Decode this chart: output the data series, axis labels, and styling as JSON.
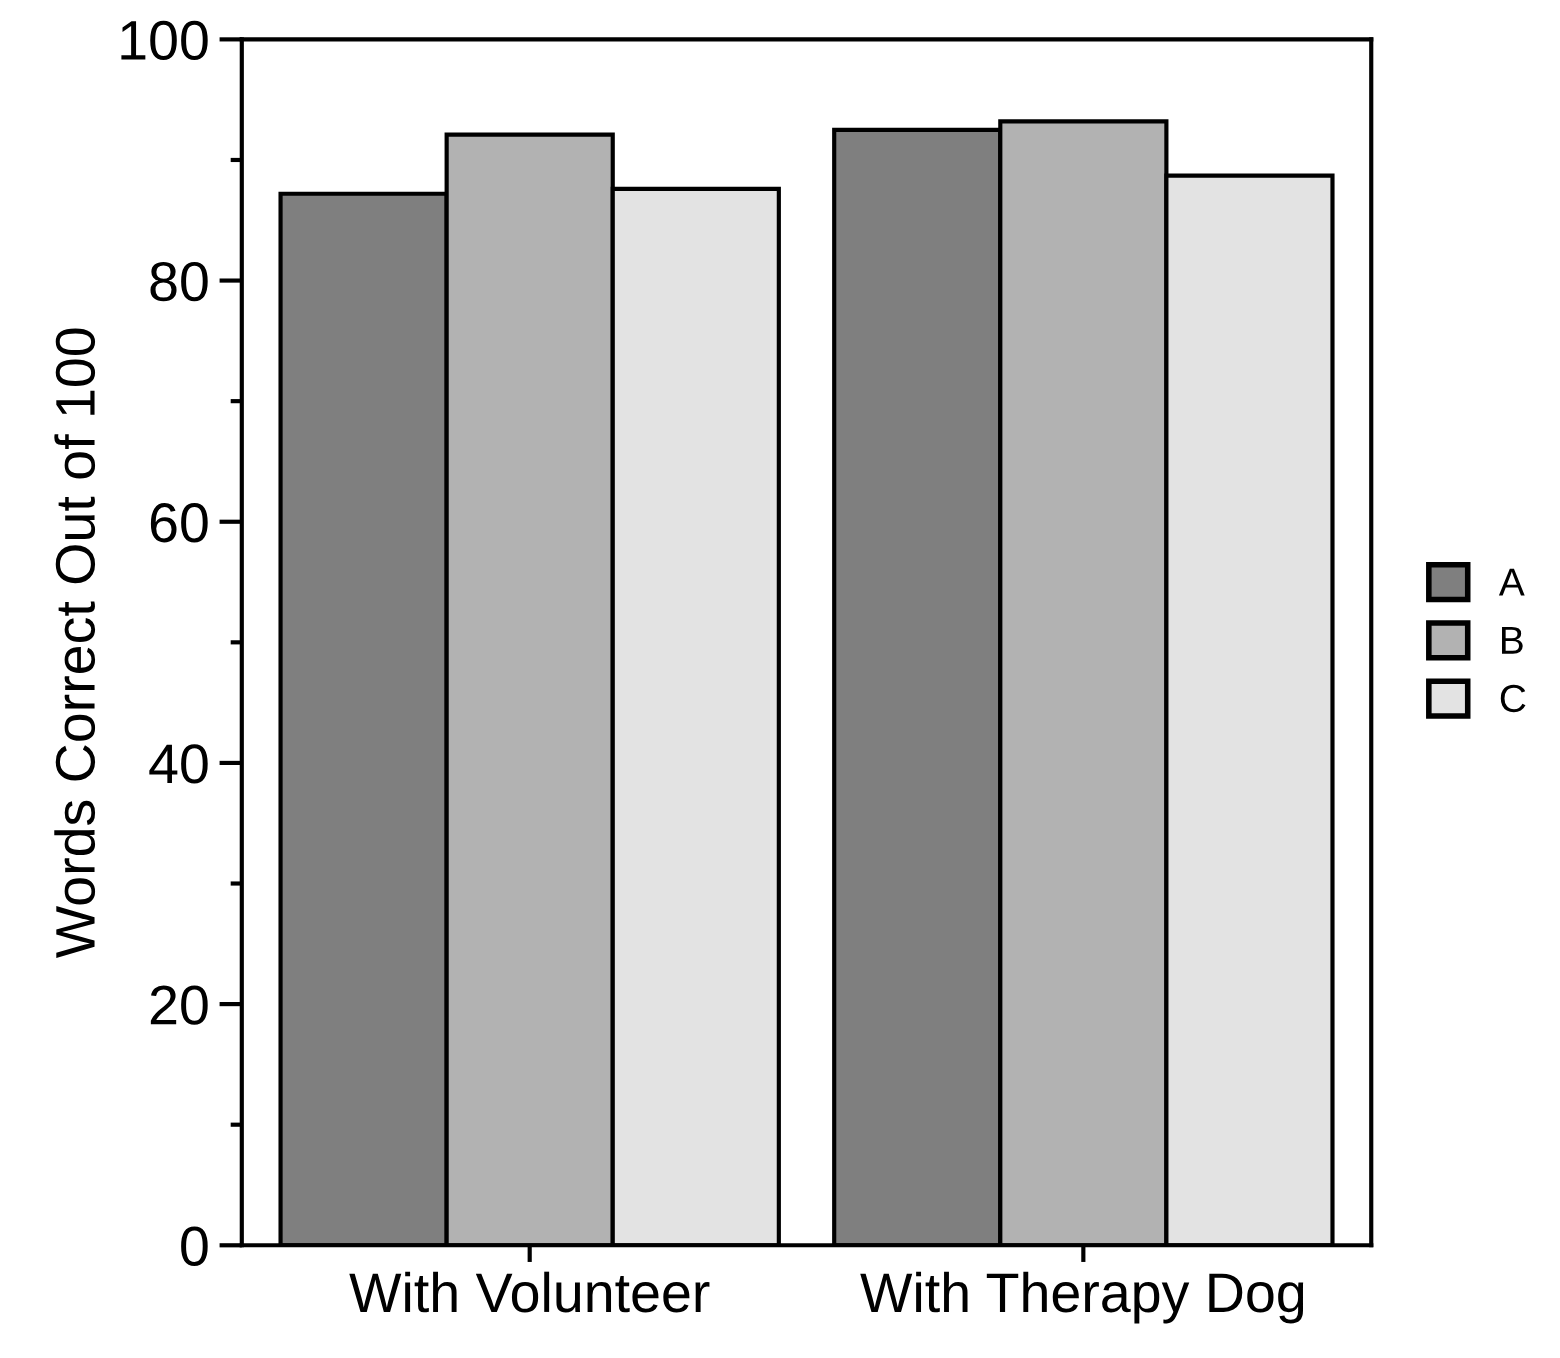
{
  "chart_data": {
    "type": "bar",
    "ylabel": "Words Correct Out of 100",
    "categories": [
      "With Volunteer",
      "With Therapy Dog"
    ],
    "series": [
      {
        "name": "A",
        "color": "#7f7f7f",
        "values": [
          87.2,
          92.5
        ]
      },
      {
        "name": "B",
        "color": "#b2b2b2",
        "values": [
          92.1,
          93.2
        ]
      },
      {
        "name": "C",
        "color": "#e3e3e3",
        "values": [
          87.6,
          88.7
        ]
      }
    ],
    "ylim": [
      0,
      100
    ],
    "yticks": [
      0,
      {
        "value": 10,
        "label": null
      },
      20,
      {
        "value": 30,
        "label": null
      },
      40,
      {
        "value": 50,
        "label": null
      },
      60,
      {
        "value": 70,
        "label": null
      },
      80,
      {
        "value": 90,
        "label": null
      },
      100
    ],
    "grid": false,
    "legend": "right"
  }
}
